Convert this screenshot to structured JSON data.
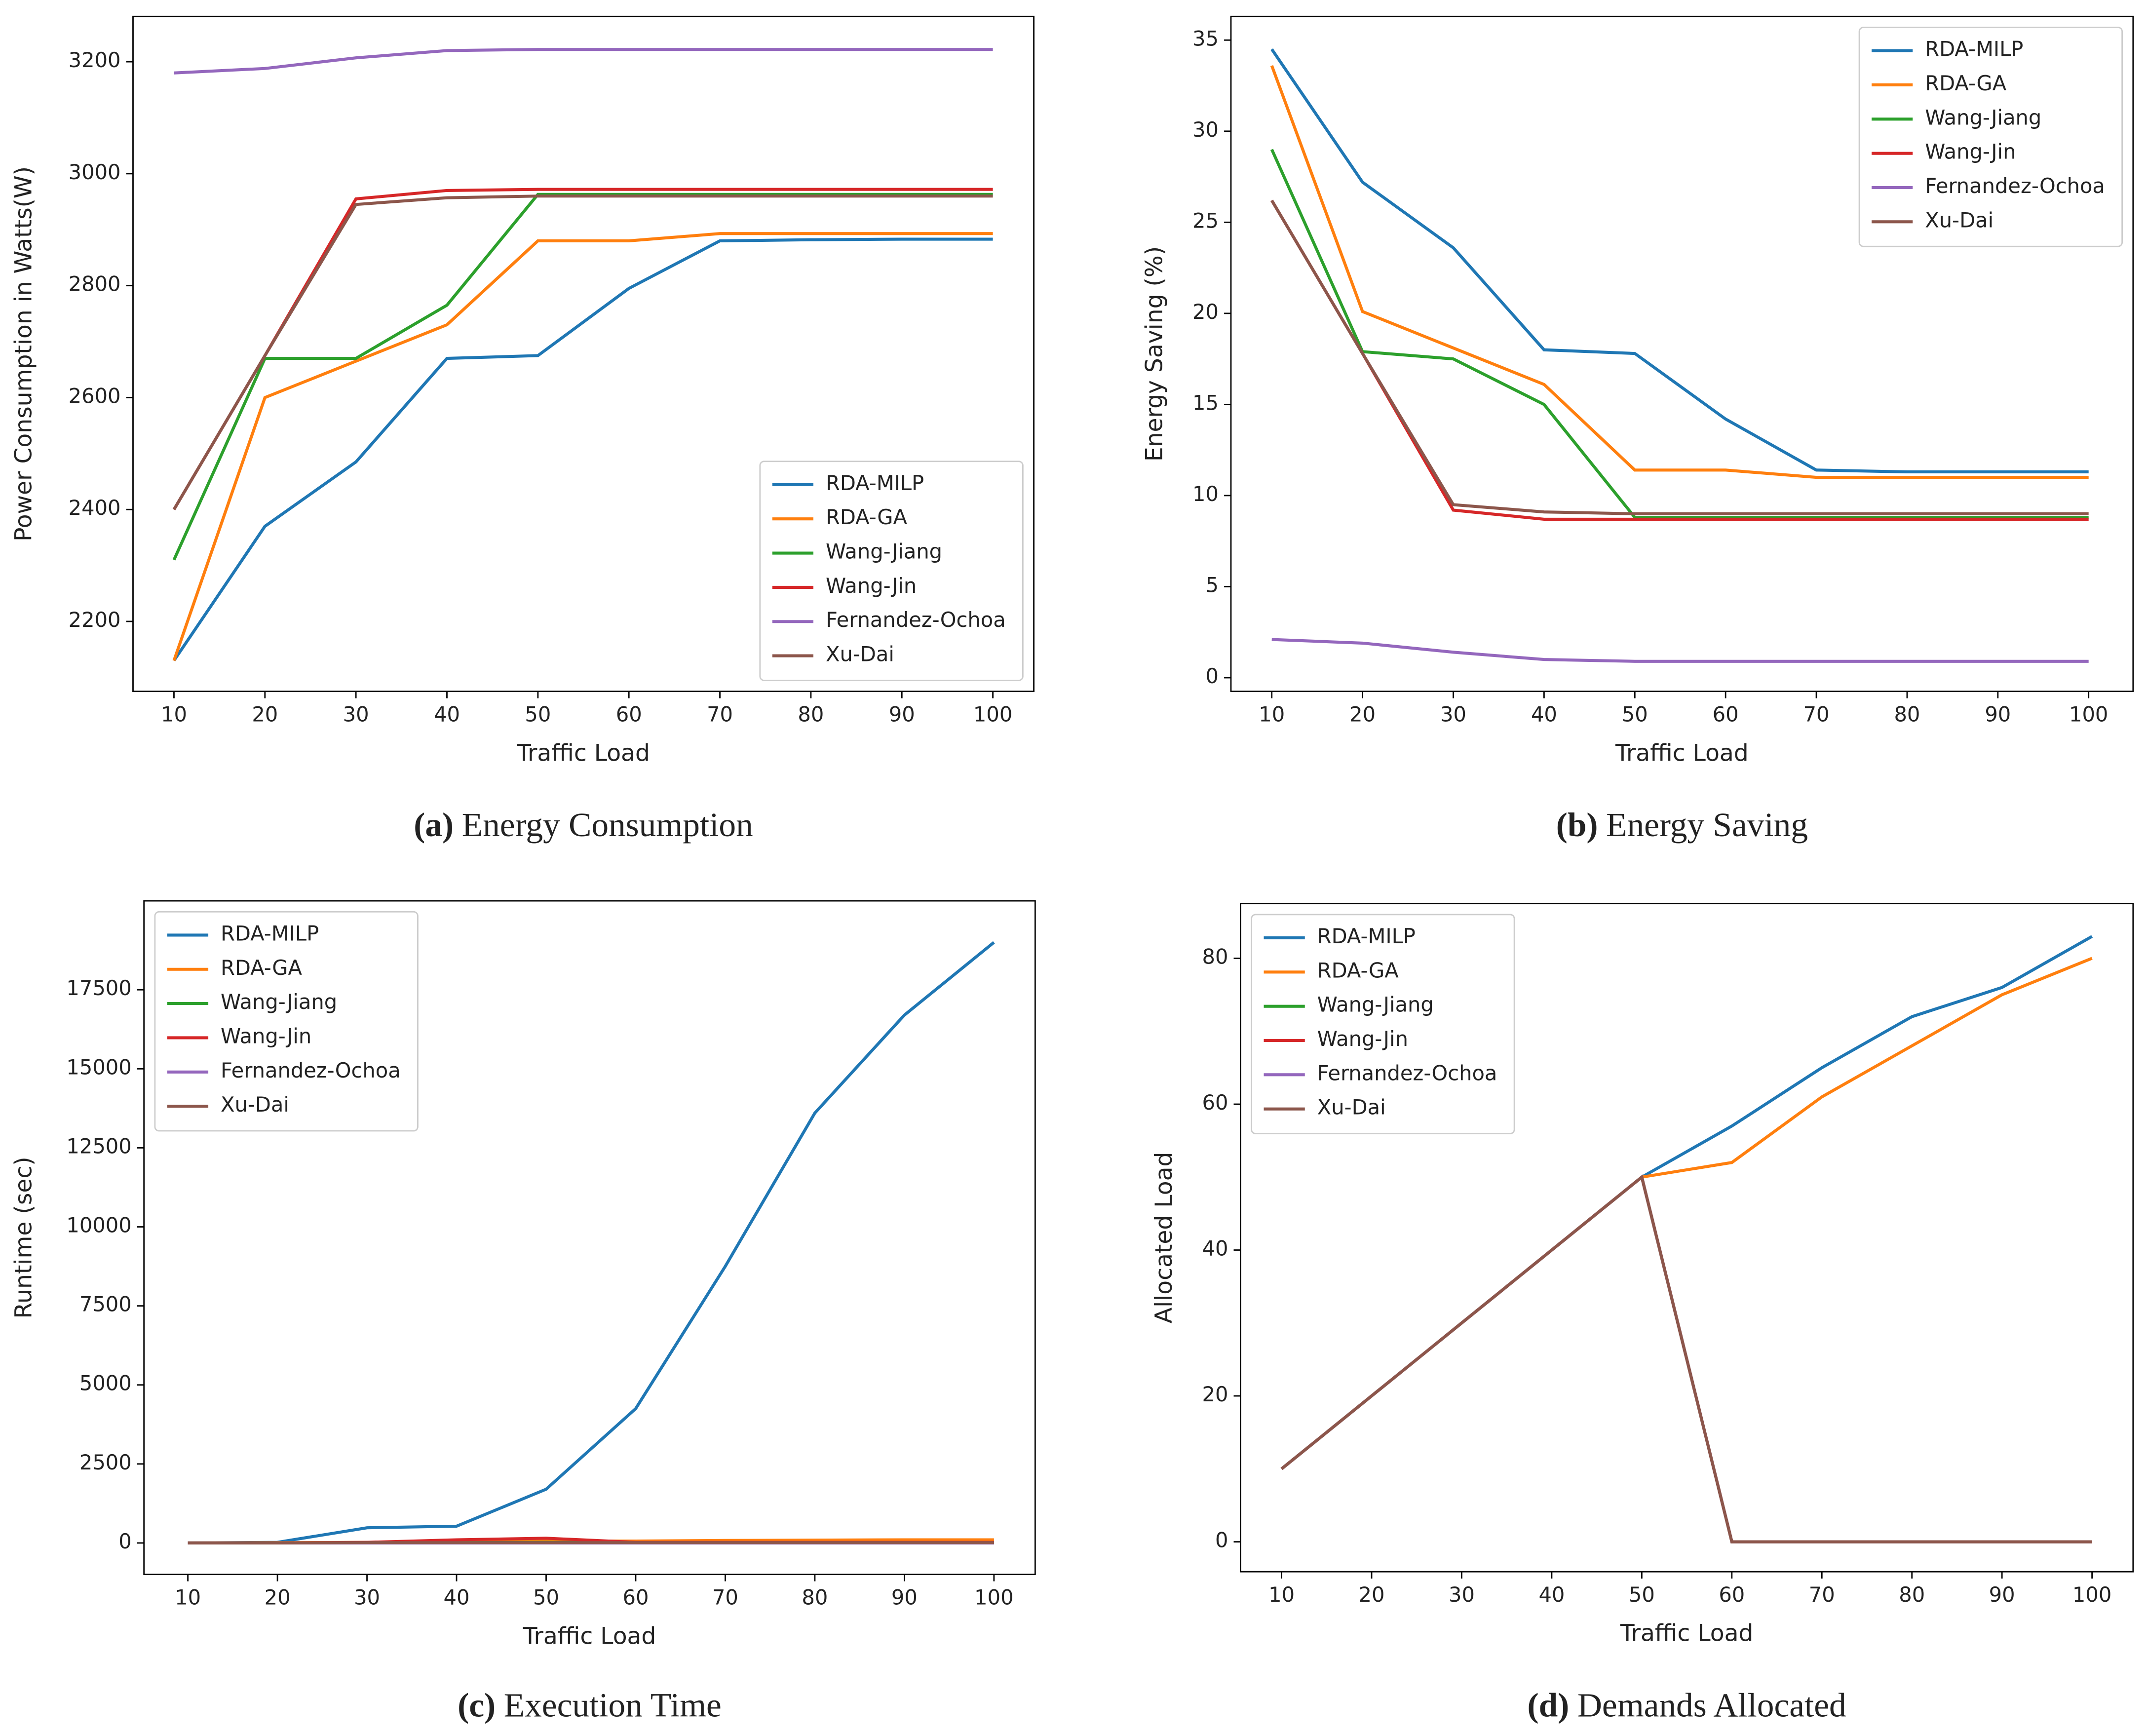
{
  "chart_data": [
    {
      "type": "line",
      "caption_label": "(a)",
      "caption": "Energy Consumption",
      "xlabel": "Traffic Load",
      "ylabel": "Power Consumption in Watts(W)",
      "x": [
        10,
        20,
        30,
        40,
        50,
        60,
        70,
        80,
        90,
        100
      ],
      "xlim": [
        5.5,
        104.5
      ],
      "xticks": [
        10,
        20,
        30,
        40,
        50,
        60,
        70,
        80,
        90,
        100
      ],
      "ylim": [
        2075,
        3281
      ],
      "yticks": [
        2200,
        2400,
        2600,
        2800,
        3000,
        3200
      ],
      "legend": "lower right",
      "series": [
        {
          "name": "RDA-MILP",
          "color": "#1f77b4",
          "values": [
            2130,
            2370,
            2485,
            2670,
            2675,
            2795,
            2880,
            2882,
            2883,
            2883
          ]
        },
        {
          "name": "RDA-GA",
          "color": "#ff7f0e",
          "values": [
            2130,
            2600,
            2665,
            2730,
            2880,
            2880,
            2893,
            2893,
            2893,
            2893
          ]
        },
        {
          "name": "Wang-Jiang",
          "color": "#2ca02c",
          "values": [
            2310,
            2670,
            2670,
            2765,
            2963,
            2963,
            2963,
            2963,
            2963,
            2963
          ]
        },
        {
          "name": "Wang-Jin",
          "color": "#d62728",
          "values": [
            2400,
            2675,
            2955,
            2970,
            2972,
            2972,
            2972,
            2972,
            2972,
            2972
          ]
        },
        {
          "name": "Fernandez-Ochoa",
          "color": "#9467bd",
          "values": [
            3180,
            3188,
            3207,
            3220,
            3222,
            3222,
            3222,
            3222,
            3222,
            3222
          ]
        },
        {
          "name": "Xu-Dai",
          "color": "#8c564b",
          "values": [
            2400,
            2675,
            2945,
            2957,
            2960,
            2960,
            2960,
            2960,
            2960,
            2960
          ]
        }
      ]
    },
    {
      "type": "line",
      "caption_label": "(b)",
      "caption": "Energy Saving",
      "xlabel": "Traffic Load",
      "ylabel": "Energy Saving (%)",
      "x": [
        10,
        20,
        30,
        40,
        50,
        60,
        70,
        80,
        90,
        100
      ],
      "xlim": [
        5.5,
        104.9
      ],
      "xticks": [
        10,
        20,
        30,
        40,
        50,
        60,
        70,
        80,
        90,
        100
      ],
      "ylim": [
        -0.75,
        36.3
      ],
      "yticks": [
        0,
        5,
        10,
        15,
        20,
        25,
        30,
        35
      ],
      "legend": "upper right",
      "series": [
        {
          "name": "RDA-MILP",
          "color": "#1f77b4",
          "values": [
            34.5,
            27.2,
            23.6,
            18.0,
            17.8,
            14.2,
            11.4,
            11.3,
            11.3,
            11.3
          ]
        },
        {
          "name": "RDA-GA",
          "color": "#ff7f0e",
          "values": [
            33.6,
            20.1,
            18.1,
            16.1,
            11.4,
            11.4,
            11.0,
            11.0,
            11.0,
            11.0
          ]
        },
        {
          "name": "Wang-Jiang",
          "color": "#2ca02c",
          "values": [
            29.0,
            17.9,
            17.5,
            15.0,
            8.8,
            8.8,
            8.8,
            8.8,
            8.8,
            8.8
          ]
        },
        {
          "name": "Wang-Jin",
          "color": "#d62728",
          "values": [
            26.2,
            17.8,
            9.2,
            8.7,
            8.7,
            8.7,
            8.7,
            8.7,
            8.7,
            8.7
          ]
        },
        {
          "name": "Fernandez-Ochoa",
          "color": "#9467bd",
          "values": [
            2.1,
            1.9,
            1.4,
            1.0,
            0.9,
            0.9,
            0.9,
            0.9,
            0.9,
            0.9
          ]
        },
        {
          "name": "Xu-Dai",
          "color": "#8c564b",
          "values": [
            26.2,
            17.8,
            9.5,
            9.1,
            9.0,
            9.0,
            9.0,
            9.0,
            9.0,
            9.0
          ]
        }
      ]
    },
    {
      "type": "line",
      "caption_label": "(c)",
      "caption": "Execution Time",
      "xlabel": "Traffic Load",
      "ylabel": "Runtime (sec)",
      "x": [
        10,
        20,
        30,
        40,
        50,
        60,
        70,
        80,
        90,
        100
      ],
      "xlim": [
        5.1,
        104.6
      ],
      "xticks": [
        10,
        20,
        30,
        40,
        50,
        60,
        70,
        80,
        90,
        100
      ],
      "ylim": [
        -996,
        20313
      ],
      "yticks": [
        0,
        2500,
        5000,
        7500,
        10000,
        12500,
        15000,
        17500
      ],
      "legend": "upper left",
      "series": [
        {
          "name": "RDA-MILP",
          "color": "#1f77b4",
          "values": [
            0,
            20,
            480,
            530,
            1700,
            4250,
            8750,
            13600,
            16700,
            19000
          ]
        },
        {
          "name": "RDA-GA",
          "color": "#ff7f0e",
          "values": [
            0,
            10,
            20,
            50,
            60,
            60,
            80,
            90,
            100,
            100
          ]
        },
        {
          "name": "Wang-Jiang",
          "color": "#2ca02c",
          "values": [
            0,
            0,
            10,
            10,
            20,
            10,
            10,
            10,
            10,
            10
          ]
        },
        {
          "name": "Wang-Jin",
          "color": "#d62728",
          "values": [
            0,
            0,
            20,
            100,
            150,
            20,
            20,
            20,
            20,
            20
          ]
        },
        {
          "name": "Fernandez-Ochoa",
          "color": "#9467bd",
          "values": [
            0,
            0,
            0,
            0,
            0,
            0,
            0,
            0,
            0,
            0
          ]
        },
        {
          "name": "Xu-Dai",
          "color": "#8c564b",
          "values": [
            0,
            0,
            10,
            10,
            10,
            10,
            10,
            10,
            10,
            10
          ]
        }
      ]
    },
    {
      "type": "line",
      "caption_label": "(d)",
      "caption": "Demands Allocated",
      "xlabel": "Traffic Load",
      "ylabel": "Allocated Load",
      "x": [
        10,
        20,
        30,
        40,
        50,
        60,
        70,
        80,
        90,
        100
      ],
      "xlim": [
        5.44,
        104.56
      ],
      "xticks": [
        10,
        20,
        30,
        40,
        50,
        60,
        70,
        80,
        90,
        100
      ],
      "ylim": [
        -4.1,
        87.5
      ],
      "yticks": [
        0,
        20,
        40,
        60,
        80
      ],
      "legend": "upper left",
      "series": [
        {
          "name": "RDA-MILP",
          "color": "#1f77b4",
          "values": [
            10,
            20,
            30,
            40,
            50,
            57,
            65,
            72,
            76,
            83
          ]
        },
        {
          "name": "RDA-GA",
          "color": "#ff7f0e",
          "values": [
            10,
            20,
            30,
            40,
            50,
            52,
            61,
            68,
            75,
            80
          ]
        },
        {
          "name": "Wang-Jiang",
          "color": "#2ca02c",
          "values": [
            10,
            20,
            30,
            40,
            50,
            0,
            0,
            0,
            0,
            0
          ]
        },
        {
          "name": "Wang-Jin",
          "color": "#d62728",
          "values": [
            10,
            20,
            30,
            40,
            50,
            0,
            0,
            0,
            0,
            0
          ]
        },
        {
          "name": "Fernandez-Ochoa",
          "color": "#9467bd",
          "values": [
            10,
            20,
            30,
            40,
            50,
            0,
            0,
            0,
            0,
            0
          ]
        },
        {
          "name": "Xu-Dai",
          "color": "#8c564b",
          "values": [
            10,
            20,
            30,
            40,
            50,
            0,
            0,
            0,
            0,
            0
          ]
        }
      ]
    }
  ]
}
